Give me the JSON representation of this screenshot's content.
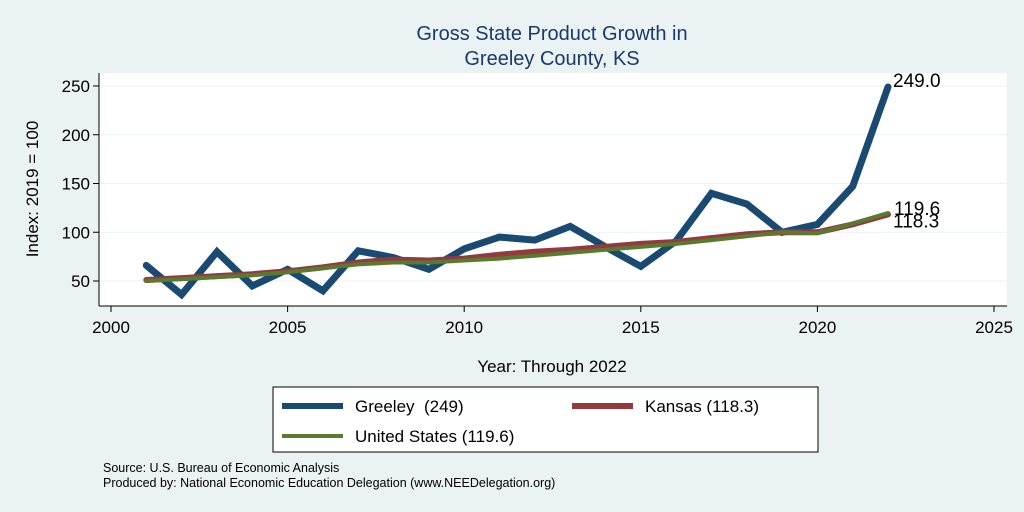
{
  "chart_data": {
    "type": "line",
    "title": [
      "Gross State Product Growth in",
      "Greeley County, KS"
    ],
    "xlabel": "Year: Through 2022",
    "ylabel": "Index: 2019 = 100",
    "xlim": [
      2000,
      2025
    ],
    "ylim": [
      50,
      250
    ],
    "xticks": [
      2000,
      2005,
      2010,
      2015,
      2020,
      2025
    ],
    "yticks": [
      50,
      100,
      150,
      200,
      250
    ],
    "grid": "horizontal",
    "x": [
      2001,
      2002,
      2003,
      2004,
      2005,
      2006,
      2007,
      2008,
      2009,
      2010,
      2011,
      2012,
      2013,
      2014,
      2015,
      2016,
      2017,
      2018,
      2019,
      2020,
      2021,
      2022
    ],
    "series": [
      {
        "name": "Greeley",
        "color": "#1a4a72",
        "legend_label": "Greeley  (249)",
        "end_label": "249.0",
        "values": [
          66,
          36,
          80,
          45,
          62,
          40,
          81,
          74,
          62,
          83,
          95,
          92,
          106,
          85,
          65,
          91,
          140,
          129,
          100,
          108,
          147,
          249.0
        ]
      },
      {
        "name": "Kansas",
        "color": "#933a3f",
        "legend_label": "Kansas (118.3)",
        "end_label": "118.3",
        "values": [
          51,
          53,
          55,
          57,
          60,
          64,
          69,
          72,
          71,
          73,
          77,
          80,
          82,
          85,
          88,
          90,
          94,
          98,
          100,
          100,
          108,
          118.3
        ]
      },
      {
        "name": "United States",
        "color": "#5a7a2f",
        "legend_label": "United States (119.6)",
        "end_label": "119.6",
        "values": [
          50,
          52,
          54,
          56,
          59,
          63,
          67,
          69,
          69,
          71,
          73,
          76,
          79,
          82,
          85,
          88,
          92,
          96,
          100,
          99,
          109,
          119.6
        ]
      }
    ],
    "legend_position": "bottom"
  },
  "notes": [
    "Source: U.S. Bureau of Economic Analysis",
    "Produced by: National Economic Education Delegation (www.NEEDelegation.org)"
  ]
}
